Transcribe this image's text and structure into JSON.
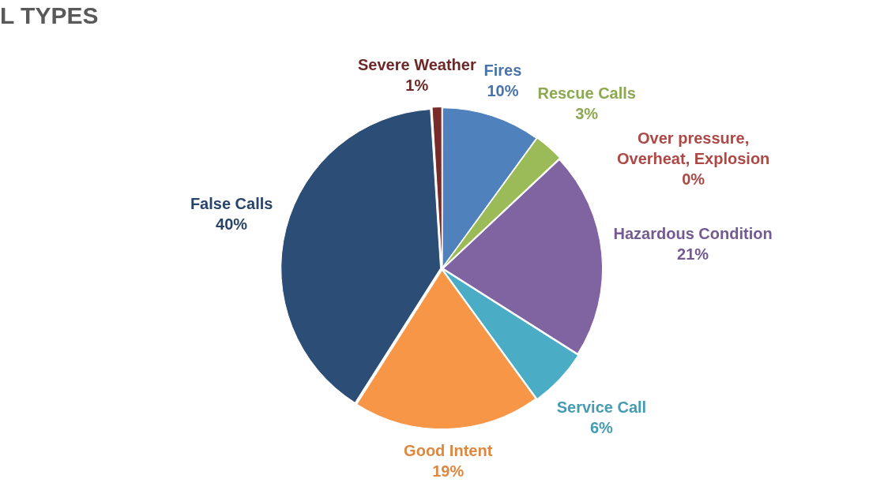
{
  "chart_data": {
    "type": "pie",
    "title": "L TYPES",
    "categories": [
      "Fires",
      "Over pressure, Overheat, Explosion",
      "Rescue Calls",
      "Hazardous Condition",
      "Service Call",
      "Good Intent",
      "False Calls",
      "Severe Weather"
    ],
    "values": [
      10,
      0,
      3,
      21,
      6,
      19,
      40,
      1
    ],
    "colors": [
      "#4f81bd",
      "#c0504d",
      "#9bbb59",
      "#8064a2",
      "#4bacc6",
      "#f79646",
      "#2c4d75",
      "#772c2a"
    ],
    "value_labels": [
      "10%",
      "0%",
      "3%",
      "21%",
      "6%",
      "19%",
      "40%",
      "1%"
    ],
    "data_labels": true,
    "legend": false
  }
}
